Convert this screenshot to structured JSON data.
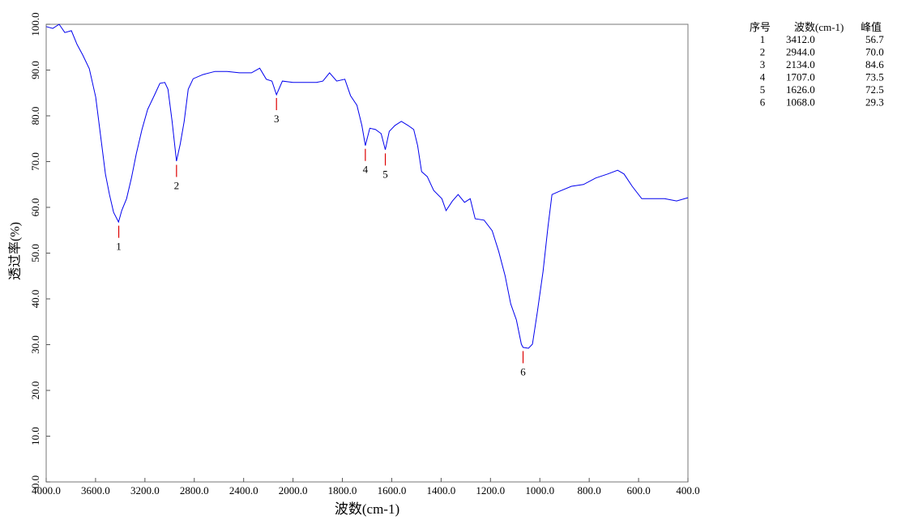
{
  "chart_data": {
    "type": "line",
    "x_label": "波数(cm-1)",
    "y_label": "透过率(%)",
    "color": "#0000ee",
    "xlim": [
      4000,
      400
    ],
    "x_scale": {
      "break": 2000,
      "factor_above_break": 0.5
    },
    "ylim": [
      0,
      100
    ],
    "xticks": [
      {
        "value": 4000,
        "label": "4000.0"
      },
      {
        "value": 3600,
        "label": "3600.0"
      },
      {
        "value": 3200,
        "label": "3200.0"
      },
      {
        "value": 2800,
        "label": "2800.0"
      },
      {
        "value": 2400,
        "label": "2400.0"
      },
      {
        "value": 2000,
        "label": "2000.0"
      },
      {
        "value": 1800,
        "label": "1800.0"
      },
      {
        "value": 1600,
        "label": "1600.0"
      },
      {
        "value": 1400,
        "label": "1400.0"
      },
      {
        "value": 1200,
        "label": "1200.0"
      },
      {
        "value": 1000,
        "label": "1000.0"
      },
      {
        "value": 800,
        "label": "800.0"
      },
      {
        "value": 600,
        "label": "600.0"
      },
      {
        "value": 400,
        "label": "400.0"
      }
    ],
    "yticks": [
      {
        "value": 0,
        "label": "0.0"
      },
      {
        "value": 10,
        "label": "10.0"
      },
      {
        "value": 20,
        "label": "20.0"
      },
      {
        "value": 30,
        "label": "30.0"
      },
      {
        "value": 40,
        "label": "40.0"
      },
      {
        "value": 50,
        "label": "50.0"
      },
      {
        "value": 60,
        "label": "60.0"
      },
      {
        "value": 70,
        "label": "70.0"
      },
      {
        "value": 80,
        "label": "80.0"
      },
      {
        "value": 90,
        "label": "90.0"
      },
      {
        "value": 100,
        "label": "100.0"
      }
    ],
    "x": [
      4000,
      3947,
      3895,
      3849,
      3796,
      3750,
      3704,
      3651,
      3599,
      3553,
      3520,
      3487,
      3454,
      3414,
      3388,
      3349,
      3309,
      3270,
      3224,
      3178,
      3125,
      3079,
      3039,
      3013,
      2980,
      2944,
      2914,
      2882,
      2849,
      2809,
      2730,
      2632,
      2533,
      2434,
      2336,
      2270,
      2217,
      2171,
      2134,
      2086,
      2000,
      1954,
      1905,
      1879,
      1852,
      1823,
      1790,
      1767,
      1741,
      1721,
      1707,
      1689,
      1666,
      1643,
      1626,
      1610,
      1587,
      1561,
      1534,
      1511,
      1495,
      1479,
      1456,
      1430,
      1397,
      1380,
      1354,
      1331,
      1305,
      1282,
      1262,
      1226,
      1193,
      1167,
      1141,
      1118,
      1095,
      1075,
      1068,
      1046,
      1030,
      1010,
      987,
      967,
      951,
      921,
      872,
      823,
      774,
      725,
      685,
      659,
      626,
      587,
      544,
      495,
      446,
      400
    ],
    "values": [
      99.5,
      99.1,
      100,
      98.2,
      98.6,
      95.6,
      93.3,
      90.3,
      84.1,
      74.3,
      67.3,
      62.8,
      58.9,
      56.8,
      59.3,
      61.9,
      66.4,
      71.7,
      77.0,
      81.4,
      84.4,
      87.1,
      87.3,
      85.8,
      78.8,
      70.1,
      73.8,
      78.8,
      85.8,
      88.1,
      89.0,
      89.7,
      89.7,
      89.4,
      89.4,
      90.4,
      88.0,
      87.6,
      84.6,
      87.6,
      87.3,
      87.3,
      87.3,
      87.6,
      89.4,
      87.6,
      88.0,
      84.4,
      82.3,
      77.9,
      73.5,
      77.3,
      77.0,
      76.1,
      72.6,
      76.6,
      77.9,
      78.8,
      77.9,
      77.0,
      73.5,
      67.8,
      66.7,
      63.7,
      61.9,
      59.3,
      61.4,
      62.8,
      61.1,
      61.9,
      57.5,
      57.2,
      54.9,
      50.4,
      45.1,
      38.9,
      35.4,
      30.1,
      29.4,
      29.2,
      30.1,
      37.2,
      46.0,
      55.8,
      62.8,
      63.5,
      64.6,
      65.0,
      66.4,
      67.3,
      68.1,
      67.3,
      64.6,
      61.9,
      61.9,
      61.9,
      61.4,
      62.1
    ],
    "peak_marker_color": "#dd0000",
    "peaks": {
      "columns": [
        "序号",
        "波数(cm-1)",
        "峰值"
      ],
      "ids": [
        1,
        2,
        3,
        4,
        5,
        6
      ],
      "x": [
        {
          "value": 3412,
          "label": "3412.0"
        },
        {
          "value": 2944,
          "label": "2944.0"
        },
        {
          "value": 2134,
          "label": "2134.0"
        },
        {
          "value": 1707,
          "label": "1707.0"
        },
        {
          "value": 1626,
          "label": "1626.0"
        },
        {
          "value": 1068,
          "label": "1068.0"
        }
      ],
      "values": [
        56.7,
        {
          "value": 70,
          "label": "70.0"
        },
        84.6,
        73.5,
        72.5,
        29.3
      ]
    }
  }
}
